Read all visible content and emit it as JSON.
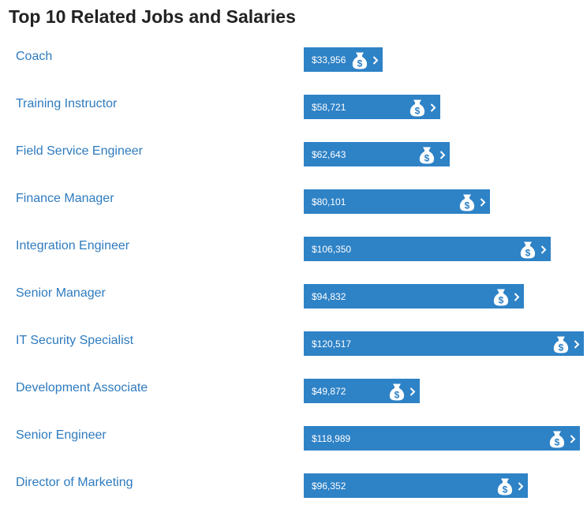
{
  "chart_data": {
    "type": "bar",
    "orientation": "horizontal",
    "title": "Top 10 Related Jobs and Salaries",
    "xlabel": "",
    "ylabel": "",
    "categories": [
      "Coach",
      "Training Instructor",
      "Field Service Engineer",
      "Finance Manager",
      "Integration Engineer",
      "Senior Manager",
      "IT Security Specialist",
      "Development Associate",
      "Senior Engineer",
      "Director of Marketing"
    ],
    "values": [
      33956,
      58721,
      62643,
      80101,
      106350,
      94832,
      120517,
      49872,
      118989,
      96352
    ],
    "value_labels": [
      "$33,956",
      "$58,721",
      "$62,643",
      "$80,101",
      "$106,350",
      "$94,832",
      "$120,517",
      "$49,872",
      "$118,989",
      "$96,352"
    ],
    "grid": false,
    "legend": "none"
  },
  "colors": {
    "bar": "#2e82c6",
    "link": "#2e7bbf",
    "title": "#222222",
    "bar_text": "#ffffff"
  },
  "icons": {
    "bar_icon": "money-bag-icon",
    "bar_arrow": "chevron-right-icon"
  }
}
